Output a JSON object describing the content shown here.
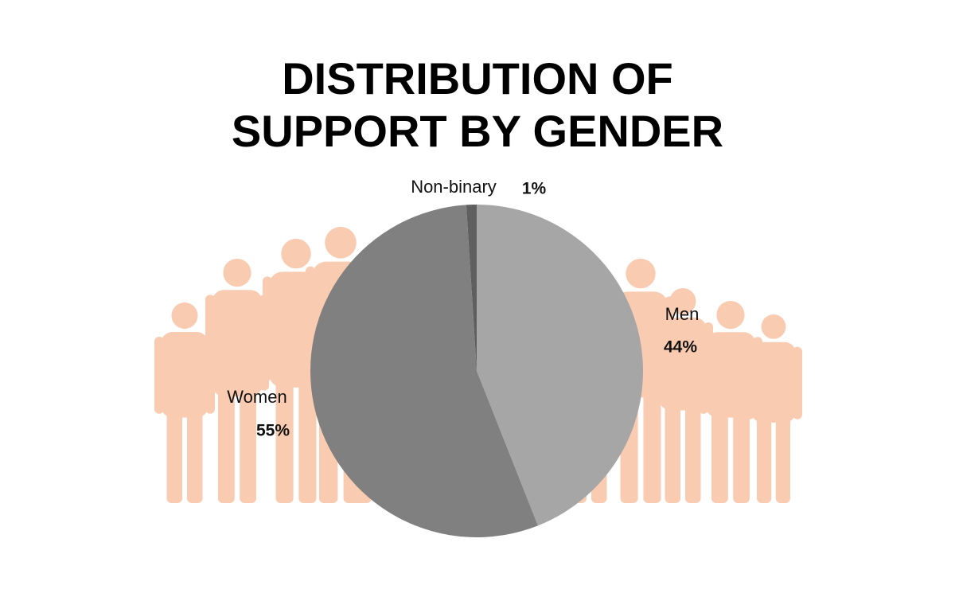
{
  "chart_data": {
    "type": "pie",
    "title": "DISTRIBUTION OF SUPPORT BY GENDER",
    "categories": [
      "Men",
      "Women",
      "Non-binary"
    ],
    "values": [
      44,
      55,
      1
    ],
    "value_labels": [
      "44%",
      "55%",
      "1%"
    ],
    "colors": [
      "#a6a6a6",
      "#808080",
      "#5f5f5f"
    ]
  }
}
